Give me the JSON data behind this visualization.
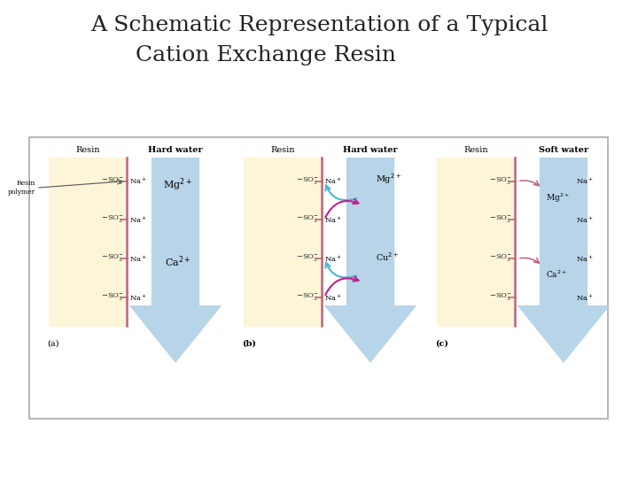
{
  "title_line1": "A Schematic Representation of a Typical",
  "title_line2": "Cation Exchange Resin",
  "title_fontsize": 18,
  "title_fontfamily": "serif",
  "bg_color": "#ffffff",
  "resin_color": "#fdf5d8",
  "water_color": "#b8d4e8",
  "resin_line_color": "#c06080",
  "border_color": "#aaaaaa",
  "text_color": "#222222",
  "cyan_arrow": "#4ab8d0",
  "pink_arrow": "#c0208a",
  "panel_label_fontsize": 7,
  "header_fontsize": 7,
  "ion_fontsize": 7,
  "so3_fontsize": 6,
  "panels": [
    "(a)",
    "(b)",
    "(c)"
  ],
  "panel_headers_left": [
    "Resin",
    "Resin",
    "Resin"
  ],
  "panel_headers_right": [
    "Hard water",
    "Hard water",
    "Soft water"
  ]
}
